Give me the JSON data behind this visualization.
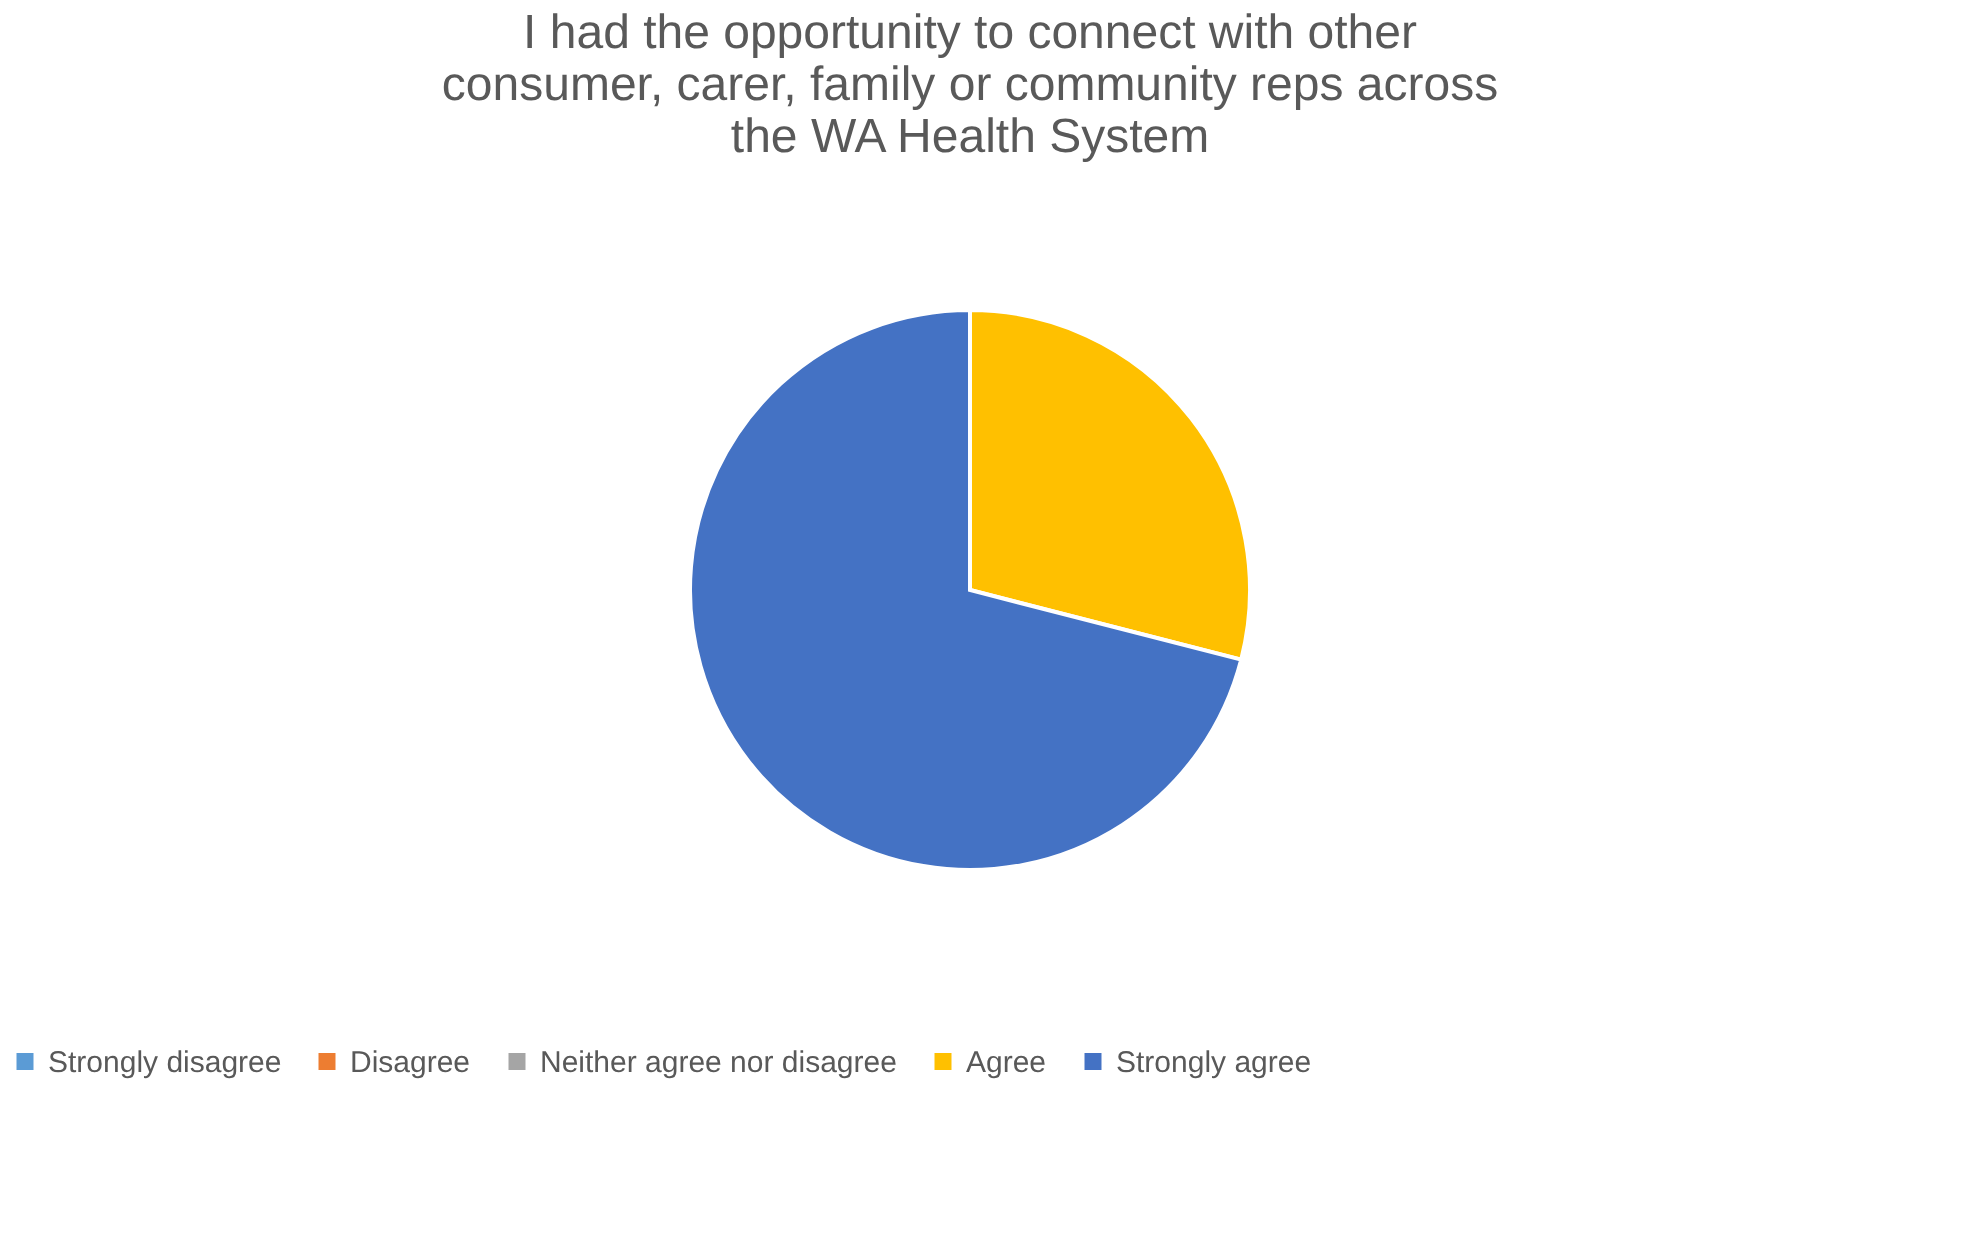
{
  "chart_data": {
    "type": "pie",
    "title": "I had the opportunity to connect with other consumer, carer, family or community reps across the WA Health System",
    "categories": [
      "Strongly disagree",
      "Disagree",
      "Neither agree nor disagree",
      "Agree",
      "Strongly agree"
    ],
    "values": [
      0,
      0,
      0,
      29,
      71
    ],
    "colors": [
      "#5b9bd5",
      "#ed7d31",
      "#a5a5a5",
      "#ffc000",
      "#4472c4"
    ],
    "legend": "bottom"
  }
}
